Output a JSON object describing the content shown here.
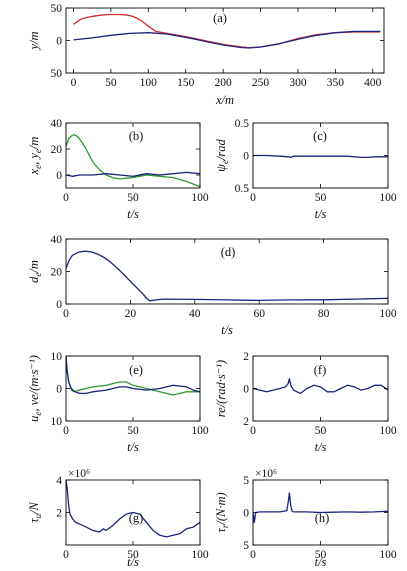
{
  "chart_data": [
    {
      "type": "line",
      "label": "(a)",
      "xlabel": "x/m",
      "ylabel": "y/m",
      "xlim": [
        -10,
        415
      ],
      "ylim": [
        -50,
        50
      ],
      "xticks": [
        0,
        50,
        100,
        150,
        200,
        250,
        300,
        350,
        400
      ],
      "yticks": [
        -50,
        0,
        50
      ],
      "ytick_labels": [
        "50",
        "0",
        "50"
      ],
      "series": [
        {
          "color": "#d42b2b",
          "x": [
            0,
            10,
            20,
            30,
            40,
            50,
            60,
            70,
            80,
            90,
            100,
            110,
            125,
            150,
            175,
            200,
            225,
            235,
            250,
            275,
            300,
            325,
            350,
            375,
            400,
            410
          ],
          "y": [
            25,
            33,
            36,
            38,
            39.5,
            40,
            40,
            39.5,
            37,
            31,
            22,
            14,
            11,
            6,
            0,
            -6,
            -10,
            -11,
            -10,
            -5,
            3,
            9,
            12,
            13,
            13,
            13
          ]
        },
        {
          "color": "#1a237e",
          "x": [
            0,
            25,
            50,
            75,
            100,
            125,
            150,
            175,
            200,
            225,
            235,
            250,
            275,
            300,
            325,
            350,
            375,
            400,
            410
          ],
          "y": [
            1,
            4,
            8,
            11,
            12,
            10,
            5,
            -1,
            -7,
            -11,
            -11.5,
            -10,
            -5,
            2,
            8,
            12,
            14,
            14,
            14
          ]
        }
      ]
    },
    {
      "type": "line",
      "label": "(b)",
      "xlabel": "t/s",
      "ylabel": "xe, ye/m",
      "xlim": [
        0,
        100
      ],
      "ylim": [
        -10,
        40
      ],
      "xticks": [
        0,
        50,
        100
      ],
      "yticks": [
        0,
        20,
        40
      ],
      "ytick_labels": [
        "0",
        "20",
        "40"
      ],
      "series": [
        {
          "color": "#2e9a2e",
          "x": [
            0,
            2,
            4,
            6,
            8,
            10,
            12,
            15,
            18,
            20,
            25,
            30,
            35,
            40,
            50,
            60,
            70,
            80,
            90,
            100
          ],
          "y": [
            22,
            28,
            30,
            31,
            30,
            28,
            25,
            20,
            14,
            10,
            4,
            0,
            -2,
            -3,
            -2,
            0,
            -1,
            -2,
            -5,
            -9
          ]
        },
        {
          "color": "#1a237e",
          "x": [
            0,
            5,
            10,
            20,
            30,
            40,
            50,
            60,
            70,
            80,
            90,
            100
          ],
          "y": [
            0,
            -1,
            0,
            0,
            1,
            0,
            -1,
            1,
            0,
            1,
            2,
            1
          ]
        }
      ]
    },
    {
      "type": "line",
      "label": "(c)",
      "xlabel": "t/s",
      "ylabel": "ψe/rad",
      "xlim": [
        0,
        100
      ],
      "ylim": [
        -0.5,
        0.5
      ],
      "xticks": [
        0,
        50,
        100
      ],
      "yticks": [
        -0.5,
        0,
        0.5
      ],
      "ytick_labels": [
        "0.5",
        "0",
        "0.5"
      ],
      "series": [
        {
          "color": "#1a237e",
          "x": [
            0,
            10,
            20,
            26,
            28,
            30,
            40,
            50,
            60,
            70,
            80,
            85,
            90,
            100
          ],
          "y": [
            0,
            0,
            -0.01,
            -0.02,
            -0.03,
            -0.01,
            -0.01,
            -0.01,
            -0.01,
            -0.01,
            -0.03,
            -0.03,
            -0.02,
            -0.02
          ]
        }
      ]
    },
    {
      "type": "line",
      "label": "(d)",
      "xlabel": "t/s",
      "ylabel": "de/m",
      "xlim": [
        0,
        100
      ],
      "ylim": [
        0,
        40
      ],
      "xticks": [
        0,
        20,
        40,
        60,
        80,
        100
      ],
      "yticks": [
        0,
        20,
        40
      ],
      "ytick_labels": [
        "0",
        "20",
        "40"
      ],
      "series": [
        {
          "color": "#1a237e",
          "x": [
            0,
            1,
            2,
            4,
            6,
            8,
            10,
            12,
            14,
            16,
            18,
            20,
            22,
            24,
            25,
            26,
            28,
            30,
            40,
            50,
            60,
            70,
            80,
            90,
            100
          ],
          "y": [
            22,
            27,
            30,
            32,
            32.5,
            32,
            30.5,
            28.5,
            25.5,
            22,
            18,
            14,
            10,
            6,
            3.5,
            2,
            2.5,
            3,
            2.8,
            2.5,
            2.2,
            2.5,
            2.6,
            3,
            3.5
          ]
        }
      ]
    },
    {
      "type": "line",
      "label": "(e)",
      "xlabel": "t/s",
      "ylabel": "ue, ve/(m·s⁻¹)",
      "xlim": [
        0,
        100
      ],
      "ylim": [
        -10,
        10
      ],
      "xticks": [
        0,
        50,
        100
      ],
      "yticks": [
        -10,
        0,
        10
      ],
      "ytick_labels": [
        "10",
        "0",
        "10"
      ],
      "series": [
        {
          "color": "#2e9a2e",
          "x": [
            0,
            2,
            4,
            6,
            10,
            20,
            30,
            40,
            45,
            50,
            60,
            70,
            80,
            90,
            100
          ],
          "y": [
            8,
            2,
            -0.5,
            -1,
            -0.5,
            0.5,
            1,
            2,
            2,
            1,
            0,
            -1,
            -2,
            -1,
            -1
          ]
        },
        {
          "color": "#1a237e",
          "x": [
            0,
            1,
            2,
            4,
            6,
            8,
            10,
            15,
            20,
            30,
            40,
            45,
            50,
            60,
            70,
            80,
            90,
            95,
            100
          ],
          "y": [
            10,
            5,
            2,
            0,
            -0.8,
            -1.2,
            -1.5,
            -1.5,
            -1,
            -0.5,
            0.5,
            0.5,
            0,
            -0.5,
            0,
            1,
            0.5,
            -0.5,
            -1
          ]
        }
      ]
    },
    {
      "type": "line",
      "label": "(f)",
      "xlabel": "t/s",
      "ylabel": "re/(rad·s⁻¹)",
      "xlim": [
        0,
        100
      ],
      "ylim": [
        -2,
        2
      ],
      "xticks": [
        0,
        50,
        100
      ],
      "yticks": [
        -2,
        0,
        2
      ],
      "ytick_labels": [
        "2",
        "0",
        "2"
      ],
      "series": [
        {
          "color": "#1a237e",
          "x": [
            0,
            5,
            10,
            15,
            20,
            24,
            26,
            27,
            28,
            30,
            35,
            40,
            45,
            50,
            55,
            60,
            65,
            70,
            75,
            80,
            85,
            90,
            95,
            100
          ],
          "y": [
            0,
            -0.1,
            -0.2,
            -0.1,
            0,
            0.1,
            0.3,
            0.6,
            0.2,
            -0.1,
            -0.3,
            0,
            0.2,
            0.1,
            -0.2,
            -0.2,
            0,
            0.2,
            0.1,
            -0.1,
            0,
            0.2,
            0.2,
            -0.1
          ]
        }
      ]
    },
    {
      "type": "line",
      "label": "(g)",
      "xlabel": "t/s",
      "ylabel": "τu/N",
      "multiplier": "×10⁶",
      "xlim": [
        0,
        100
      ],
      "ylim": [
        0,
        4
      ],
      "xticks": [
        0,
        50,
        100
      ],
      "yticks": [
        2,
        4
      ],
      "ytick_labels": [
        "2",
        "4"
      ],
      "series": [
        {
          "color": "#1a237e",
          "x": [
            0,
            1,
            2,
            3,
            5,
            7,
            10,
            15,
            20,
            25,
            28,
            30,
            35,
            40,
            45,
            50,
            55,
            60,
            65,
            70,
            75,
            80,
            85,
            90,
            95,
            100
          ],
          "y": [
            4,
            3.4,
            2.4,
            1.9,
            1.6,
            1.4,
            1.3,
            1.1,
            0.9,
            0.8,
            1,
            0.9,
            1.2,
            1.6,
            1.9,
            2,
            1.9,
            1.4,
            0.9,
            0.6,
            0.5,
            0.6,
            0.7,
            1,
            1.1,
            1.4
          ]
        }
      ]
    },
    {
      "type": "line",
      "label": "(h)",
      "xlabel": "t/s",
      "ylabel": "τr/(N·m)",
      "multiplier": "×10⁶",
      "xlim": [
        0,
        100
      ],
      "ylim": [
        -5,
        5
      ],
      "xticks": [
        0,
        50,
        100
      ],
      "yticks": [
        -5,
        0,
        5
      ],
      "ytick_labels": [
        "5",
        "0",
        "5"
      ],
      "series": [
        {
          "color": "#1a237e",
          "x": [
            0,
            1,
            2,
            5,
            10,
            20,
            25,
            26,
            27,
            28,
            29,
            30,
            40,
            50,
            60,
            70,
            80,
            90,
            100
          ],
          "y": [
            0,
            -1.5,
            0,
            0.1,
            0.1,
            0.1,
            0.3,
            1.5,
            3,
            1,
            0.2,
            0.1,
            0.1,
            0,
            0.05,
            0.1,
            0.05,
            0.1,
            0.2
          ]
        }
      ]
    }
  ]
}
